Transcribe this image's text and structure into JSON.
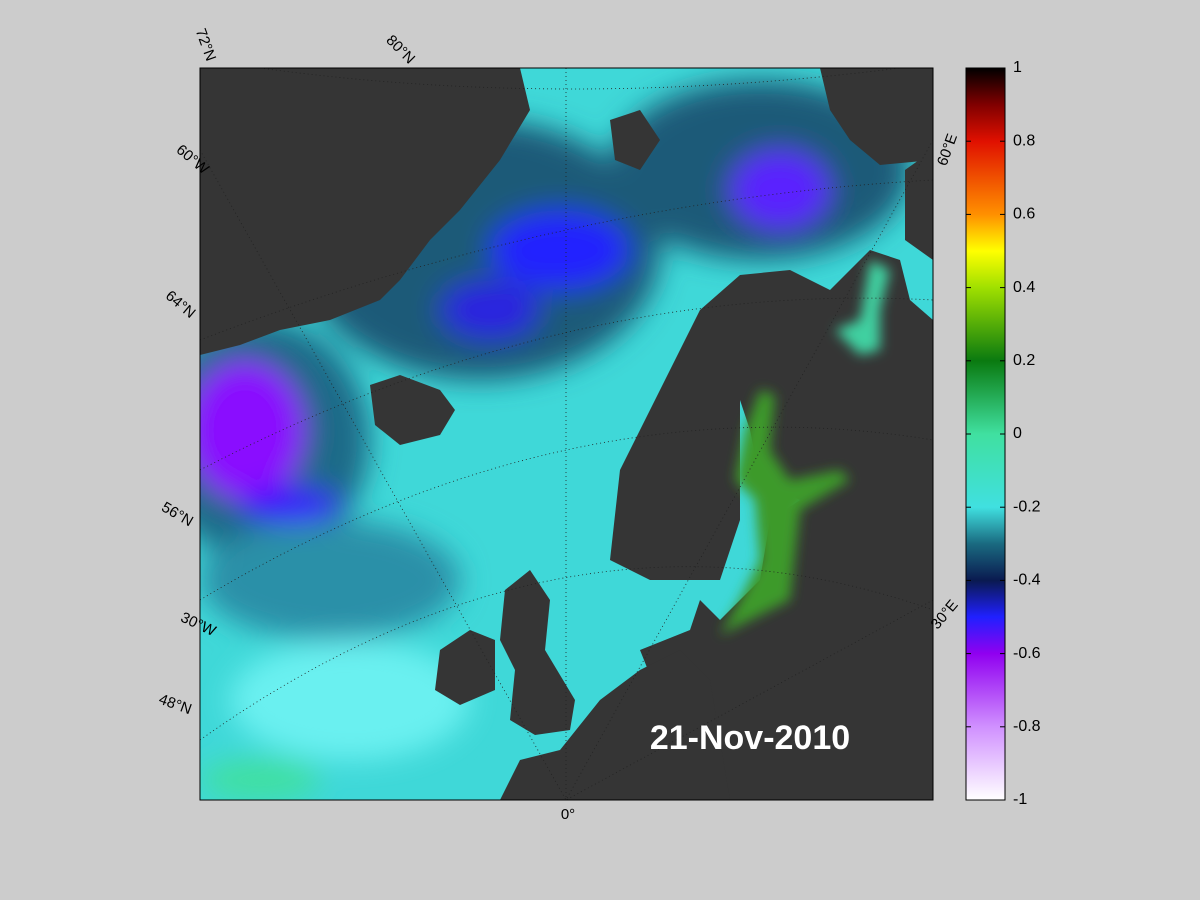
{
  "map": {
    "date_label": "21-Nov-2010",
    "graticule_labels": [
      "72°N",
      "80°N",
      "60°W",
      "64°N",
      "56°N",
      "30°W",
      "48°N",
      "0°",
      "60°E",
      "30°E"
    ]
  },
  "colorbar": {
    "ylim": [
      -1,
      1
    ],
    "yticks": [
      -1,
      -0.8,
      -0.6,
      -0.4,
      -0.2,
      0,
      0.2,
      0.4,
      0.6,
      0.8,
      1
    ]
  }
}
